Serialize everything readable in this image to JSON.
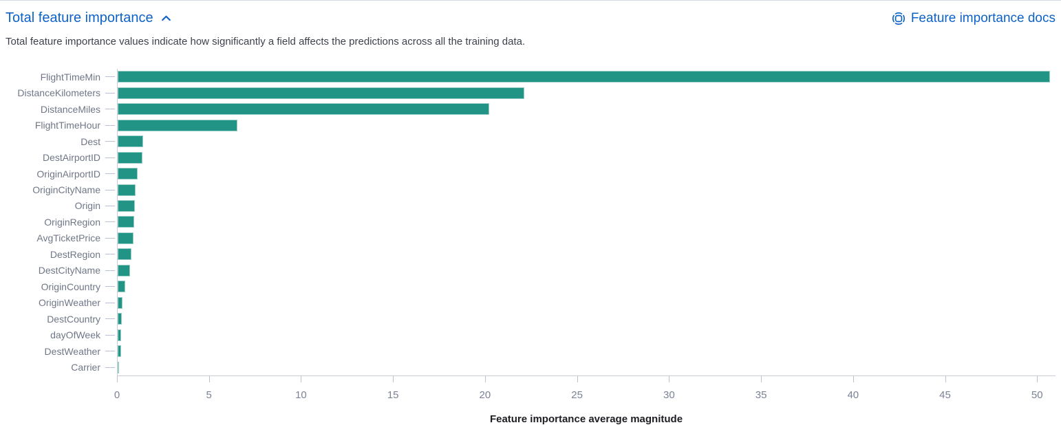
{
  "header": {
    "title": "Total feature importance",
    "collapse_icon": "chevron-up",
    "docs_link": {
      "label": "Feature importance docs",
      "icon": "docs-life-ring"
    }
  },
  "description": "Total feature importance values indicate how significantly a field affects the predictions across all the training data.",
  "colors": {
    "bar": "#219486",
    "link": "#0d62c6",
    "axis_label": "#6f7787",
    "axis_line": "#c6cdd9",
    "tick": "#b9c1d4",
    "text": "#343741"
  },
  "chart_data": {
    "type": "bar",
    "orientation": "horizontal",
    "title": "",
    "xlabel": "Feature importance average magnitude",
    "ylabel": "",
    "categories": [
      "FlightTimeMin",
      "DistanceKilometers",
      "DistanceMiles",
      "FlightTimeHour",
      "Dest",
      "DestAirportID",
      "OriginAirportID",
      "OriginCityName",
      "Origin",
      "OriginRegion",
      "AvgTicketPrice",
      "DestRegion",
      "DestCityName",
      "OriginCountry",
      "OriginWeather",
      "DestCountry",
      "dayOfWeek",
      "DestWeather",
      "Carrier"
    ],
    "values": [
      50.7,
      22.1,
      20.2,
      6.5,
      1.37,
      1.33,
      1.07,
      0.96,
      0.93,
      0.89,
      0.85,
      0.74,
      0.67,
      0.41,
      0.25,
      0.21,
      0.2,
      0.17,
      0.08
    ],
    "xticks": [
      0,
      5,
      10,
      15,
      20,
      25,
      30,
      35,
      40,
      45,
      50
    ],
    "xlim": [
      0,
      51
    ],
    "grid": false,
    "legend": false
  }
}
